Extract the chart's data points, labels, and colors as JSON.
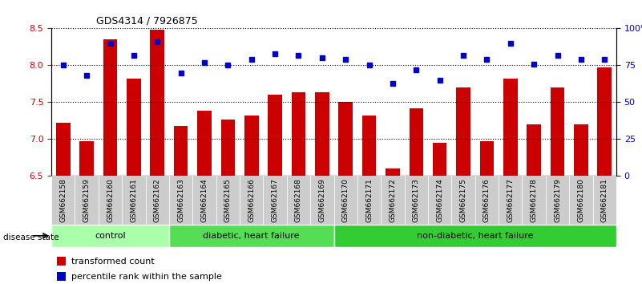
{
  "title": "GDS4314 / 7926875",
  "samples": [
    "GSM662158",
    "GSM662159",
    "GSM662160",
    "GSM662161",
    "GSM662162",
    "GSM662163",
    "GSM662164",
    "GSM662165",
    "GSM662166",
    "GSM662167",
    "GSM662168",
    "GSM662169",
    "GSM662170",
    "GSM662171",
    "GSM662172",
    "GSM662173",
    "GSM662174",
    "GSM662175",
    "GSM662176",
    "GSM662177",
    "GSM662178",
    "GSM662179",
    "GSM662180",
    "GSM662181"
  ],
  "bar_values": [
    7.22,
    6.97,
    8.35,
    7.82,
    8.48,
    7.18,
    7.38,
    7.27,
    7.32,
    7.6,
    7.63,
    7.63,
    7.5,
    7.32,
    6.6,
    7.42,
    6.95,
    7.7,
    6.97,
    7.82,
    7.2,
    7.7,
    7.2,
    7.97
  ],
  "dot_values": [
    75,
    68,
    90,
    82,
    91,
    70,
    77,
    75,
    79,
    83,
    82,
    80,
    79,
    75,
    63,
    72,
    65,
    82,
    79,
    90,
    76,
    82,
    79,
    79
  ],
  "ylim_left": [
    6.5,
    8.5
  ],
  "ylim_right": [
    0,
    100
  ],
  "yticks_left": [
    6.5,
    7.0,
    7.5,
    8.0,
    8.5
  ],
  "yticks_right": [
    0,
    25,
    50,
    75,
    100
  ],
  "ytick_labels_right": [
    "0",
    "25",
    "50",
    "75",
    "100%"
  ],
  "bar_color": "#cc0000",
  "dot_color": "#0000cc",
  "groups": [
    {
      "label": "control",
      "start": 0,
      "end": 5,
      "color": "#aaffaa"
    },
    {
      "label": "diabetic, heart failure",
      "start": 5,
      "end": 12,
      "color": "#55dd55"
    },
    {
      "label": "non-diabetic, heart failure",
      "start": 12,
      "end": 24,
      "color": "#33cc33"
    }
  ],
  "disease_state_label": "disease state",
  "legend_items": [
    {
      "label": "transformed count",
      "color": "#cc0000"
    },
    {
      "label": "percentile rank within the sample",
      "color": "#0000cc"
    }
  ],
  "grid_color": "#000000",
  "tick_label_color_left": "#cc0000",
  "tick_label_color_right": "#0000cc",
  "xtick_bg_color": "#cccccc"
}
